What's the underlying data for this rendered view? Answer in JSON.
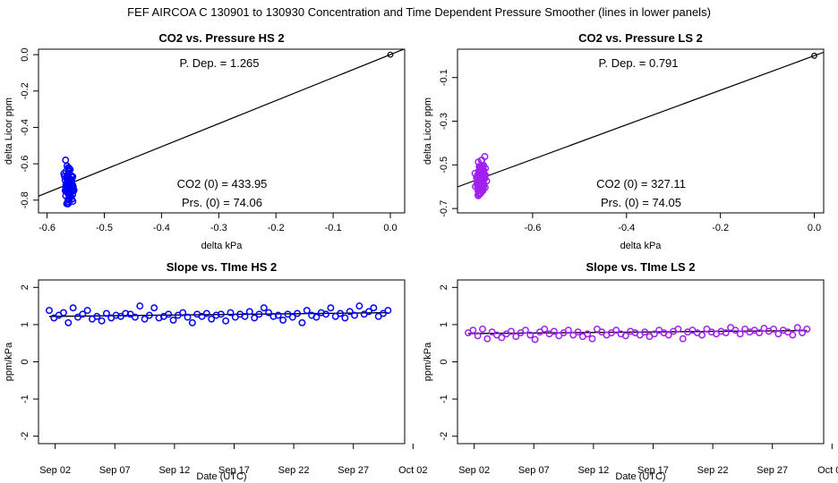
{
  "figure_title": "FEF   AIRCOA C   130901 to 130930   Concentration and Time Dependent Pressure Smoother (lines in lower panels)",
  "chart_data": [
    {
      "type": "scatter",
      "title": "CO2 vs. Pressure HS 2",
      "xlabel": "delta kPa",
      "ylabel": "delta Licor ppm",
      "xlim": [
        -0.615,
        0.025
      ],
      "ylim": [
        -0.87,
        0.03
      ],
      "xticks": [
        -0.6,
        -0.5,
        -0.4,
        -0.3,
        -0.2,
        -0.1,
        0.0
      ],
      "xtick_labels": [
        "-0.6",
        "-0.5",
        "-0.4",
        "-0.3",
        "-0.2",
        "-0.1",
        "0.0"
      ],
      "yticks": [
        0.0,
        -0.2,
        -0.4,
        -0.6,
        -0.8
      ],
      "ytick_labels": [
        "0.0",
        "-0.2",
        "-0.4",
        "-0.6",
        "-0.8"
      ],
      "point_color": "#0000ff",
      "slope": 1.265,
      "fit_line": {
        "x": [
          -0.615,
          0.025
        ],
        "y": [
          -0.778,
          0.032
        ]
      },
      "origin_point": {
        "x": 0,
        "y": 0
      },
      "cluster": {
        "x_center": -0.562,
        "x_spread": 0.012,
        "y_center": -0.715,
        "y_spread": 0.14
      },
      "annotations": [
        "P. Dep. =  1.265",
        "CO2 (0) =  433.95",
        "Prs. (0) = 74.06"
      ]
    },
    {
      "type": "scatter",
      "title": "CO2 vs. Pressure LS 2",
      "xlabel": "delta kPa",
      "ylabel": "delta Licor ppm",
      "xlim": [
        -0.76,
        0.02
      ],
      "ylim": [
        -0.72,
        0.03
      ],
      "xticks": [
        -0.6,
        -0.4,
        -0.2,
        0.0
      ],
      "xtick_labels": [
        "-0.6",
        "-0.4",
        "-0.2",
        "0.0"
      ],
      "yticks": [
        -0.1,
        -0.3,
        -0.5,
        -0.7
      ],
      "ytick_labels": [
        "-0.1",
        "-0.3",
        "-0.5",
        "-0.7"
      ],
      "point_color": "#a020f0",
      "slope": 0.791,
      "fit_line": {
        "x": [
          -0.76,
          0.02
        ],
        "y": [
          -0.601,
          0.016
        ]
      },
      "origin_point": {
        "x": 0,
        "y": 0
      },
      "cluster": {
        "x_center": -0.71,
        "x_spread": 0.014,
        "y_center": -0.565,
        "y_spread": 0.13
      },
      "annotations": [
        "P. Dep. =  0.791",
        "CO2 (0) =  327.11",
        "Prs. (0) = 74.05"
      ]
    },
    {
      "type": "scatter",
      "title": "Slope vs. TIme HS 2",
      "xlabel": "Date (UTC)",
      "ylabel": "ppm/kPa",
      "xlim": [
        0.6,
        31.3
      ],
      "ylim": [
        -2.2,
        2.2
      ],
      "xticks": [
        2,
        7,
        12,
        17,
        22,
        27,
        32
      ],
      "xtick_labels": [
        "Sep 02",
        "Sep 07",
        "Sep 12",
        "Sep 17",
        "Sep 22",
        "Sep 27",
        "Oct 02"
      ],
      "yticks": [
        -2,
        -1,
        0,
        1,
        2
      ],
      "ytick_labels": [
        "-2",
        "-1",
        "0",
        "1",
        "2"
      ],
      "point_color": "#0000ff",
      "x": [
        1.5,
        1.9,
        2.3,
        2.7,
        3.1,
        3.5,
        3.9,
        4.3,
        4.7,
        5.1,
        5.5,
        5.9,
        6.3,
        6.7,
        7.1,
        7.5,
        7.9,
        8.3,
        8.7,
        9.1,
        9.5,
        9.9,
        10.3,
        10.7,
        11.1,
        11.5,
        11.9,
        12.3,
        12.7,
        13.1,
        13.5,
        13.9,
        14.3,
        14.7,
        15.1,
        15.5,
        15.9,
        16.3,
        16.7,
        17.1,
        17.5,
        17.9,
        18.3,
        18.7,
        19.1,
        19.5,
        19.9,
        20.3,
        20.7,
        21.1,
        21.5,
        21.9,
        22.3,
        22.7,
        23.1,
        23.5,
        23.9,
        24.3,
        24.7,
        25.1,
        25.5,
        25.9,
        26.3,
        26.7,
        27.1,
        27.5,
        27.9,
        28.3,
        28.7,
        29.1,
        29.5,
        29.9
      ],
      "values": [
        1.38,
        1.18,
        1.25,
        1.32,
        1.05,
        1.45,
        1.2,
        1.28,
        1.38,
        1.15,
        1.22,
        1.1,
        1.3,
        1.18,
        1.25,
        1.22,
        1.3,
        1.28,
        1.2,
        1.5,
        1.15,
        1.25,
        1.45,
        1.18,
        1.22,
        1.28,
        1.12,
        1.25,
        1.32,
        1.2,
        1.05,
        1.28,
        1.22,
        1.3,
        1.15,
        1.25,
        1.28,
        1.1,
        1.32,
        1.2,
        1.28,
        1.22,
        1.35,
        1.18,
        1.28,
        1.45,
        1.32,
        1.22,
        1.25,
        1.12,
        1.28,
        1.2,
        1.3,
        1.05,
        1.38,
        1.25,
        1.2,
        1.32,
        1.28,
        1.45,
        1.22,
        1.3,
        1.18,
        1.35,
        1.25,
        1.5,
        1.28,
        1.35,
        1.45,
        1.22,
        1.3,
        1.38
      ],
      "smoother": {
        "x": [
          1.5,
          29.9
        ],
        "y": [
          1.22,
          1.32
        ]
      }
    },
    {
      "type": "scatter",
      "title": "Slope vs. TIme LS 2",
      "xlabel": "Date (UTC)",
      "ylabel": "ppm/kPa",
      "xlim": [
        0.6,
        31.3
      ],
      "ylim": [
        -2.2,
        2.2
      ],
      "xticks": [
        2,
        7,
        12,
        17,
        22,
        27,
        32
      ],
      "xtick_labels": [
        "Sep 02",
        "Sep 07",
        "Sep 12",
        "Sep 17",
        "Sep 22",
        "Sep 27",
        "Oct 02"
      ],
      "yticks": [
        -2,
        -1,
        0,
        1,
        2
      ],
      "ytick_labels": [
        "-2",
        "-1",
        "0",
        "1",
        "2"
      ],
      "point_color": "#a020f0",
      "x": [
        1.5,
        1.9,
        2.3,
        2.7,
        3.1,
        3.5,
        3.9,
        4.3,
        4.7,
        5.1,
        5.5,
        5.9,
        6.3,
        6.7,
        7.1,
        7.5,
        7.9,
        8.3,
        8.7,
        9.1,
        9.5,
        9.9,
        10.3,
        10.7,
        11.1,
        11.5,
        11.9,
        12.3,
        12.7,
        13.1,
        13.5,
        13.9,
        14.3,
        14.7,
        15.1,
        15.5,
        15.9,
        16.3,
        16.7,
        17.1,
        17.5,
        17.9,
        18.3,
        18.7,
        19.1,
        19.5,
        19.9,
        20.3,
        20.7,
        21.1,
        21.5,
        21.9,
        22.3,
        22.7,
        23.1,
        23.5,
        23.9,
        24.3,
        24.7,
        25.1,
        25.5,
        25.9,
        26.3,
        26.7,
        27.1,
        27.5,
        27.9,
        28.3,
        28.7,
        29.1,
        29.5,
        29.9
      ],
      "values": [
        0.78,
        0.85,
        0.7,
        0.88,
        0.62,
        0.8,
        0.72,
        0.65,
        0.75,
        0.82,
        0.68,
        0.78,
        0.85,
        0.72,
        0.6,
        0.8,
        0.88,
        0.75,
        0.82,
        0.7,
        0.78,
        0.85,
        0.72,
        0.8,
        0.68,
        0.75,
        0.62,
        0.88,
        0.8,
        0.72,
        0.78,
        0.85,
        0.75,
        0.7,
        0.82,
        0.78,
        0.72,
        0.8,
        0.68,
        0.75,
        0.85,
        0.78,
        0.72,
        0.82,
        0.88,
        0.62,
        0.8,
        0.85,
        0.78,
        0.72,
        0.88,
        0.8,
        0.75,
        0.82,
        0.78,
        0.92,
        0.85,
        0.75,
        0.88,
        0.8,
        0.85,
        0.78,
        0.9,
        0.82,
        0.88,
        0.75,
        0.85,
        0.8,
        0.72,
        0.92,
        0.78,
        0.88
      ],
      "smoother": {
        "x": [
          1.5,
          29.9
        ],
        "y": [
          0.76,
          0.84
        ]
      }
    }
  ]
}
